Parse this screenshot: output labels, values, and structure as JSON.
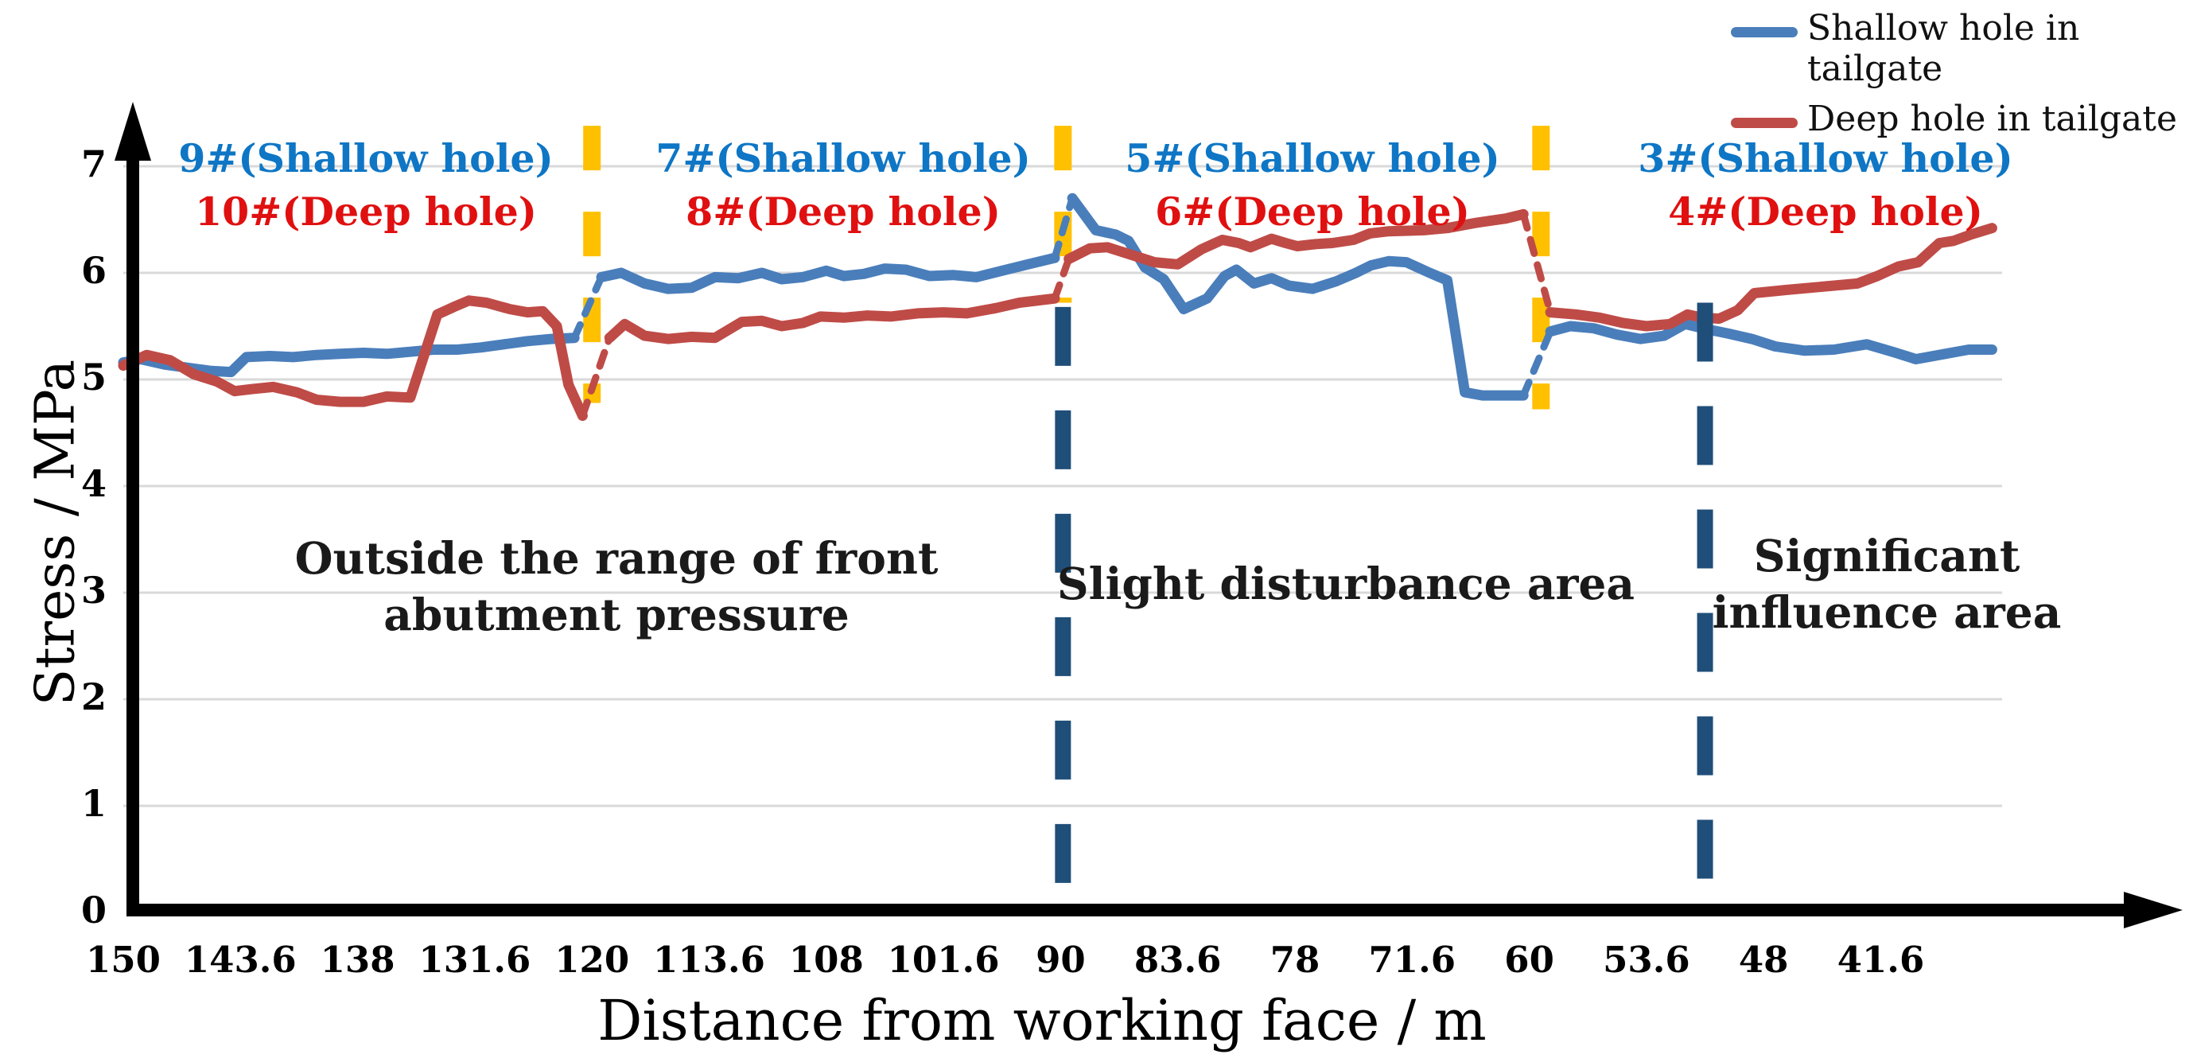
{
  "figure": {
    "background": "#ffffff",
    "description": "Borehole stress monitoring curves versus distance from working face"
  },
  "legend": {
    "items": [
      {
        "label": "Shallow hole in tailgate",
        "color": "#4a7ebb"
      },
      {
        "label": "Deep hole in tailgate",
        "color": "#bf4b47"
      }
    ]
  },
  "annotations": {
    "colors": {
      "shallow_text": "#0e76c5",
      "deep_text": "#e01010"
    },
    "hole_groups": [
      {
        "line1": "9#(Shallow hole)",
        "line2": "10#(Deep hole)"
      },
      {
        "line1": "7#(Shallow hole)",
        "line2": "8#(Deep hole)"
      },
      {
        "line1": "5#(Shallow hole)",
        "line2": "6#(Deep hole)"
      },
      {
        "line1": "3#(Shallow hole)",
        "line2": "4#(Deep hole)"
      }
    ],
    "regions": [
      {
        "line1": "Outside the range of front",
        "line2": "abutment pressure"
      },
      {
        "line1": "Slight disturbance area",
        "line2": ""
      },
      {
        "line1": "Significant",
        "line2": "influence area"
      }
    ]
  },
  "chart_data": {
    "type": "line",
    "title": "",
    "xlabel": "Distance from working face / m",
    "ylabel": "Stress / MPa",
    "x_tick_labels": [
      "150",
      "143.6",
      "138",
      "131.6",
      "120",
      "113.6",
      "108",
      "101.6",
      "90",
      "83.6",
      "78",
      "71.6",
      "60",
      "53.6",
      "48",
      "41.6"
    ],
    "x_direction": "decreasing distance left to right, ticks equally spaced",
    "y_ticks": [
      0,
      1,
      2,
      3,
      4,
      5,
      6,
      7
    ],
    "ylim": [
      0,
      7
    ],
    "grid": "horizontal gridlines at each integer, light gray",
    "legend_position": "top-right outside plot",
    "gridline_color": "#d9d9d9",
    "point_format": "[x_tick_index (0=150m ... 15=41.6m), stress_MPa]",
    "series": [
      {
        "name": "Shallow hole in tailgate",
        "color": "#4a7ebb",
        "segments": [
          {
            "style": "solid",
            "points": [
              [
                0,
                5.16
              ],
              [
                0.15,
                5.19
              ],
              [
                0.35,
                5.14
              ],
              [
                0.55,
                5.11
              ],
              [
                0.75,
                5.08
              ],
              [
                0.92,
                5.07
              ],
              [
                1.05,
                5.21
              ],
              [
                1.25,
                5.22
              ],
              [
                1.45,
                5.21
              ],
              [
                1.65,
                5.23
              ],
              [
                1.85,
                5.24
              ],
              [
                2.05,
                5.25
              ],
              [
                2.25,
                5.24
              ],
              [
                2.45,
                5.26
              ],
              [
                2.65,
                5.28
              ],
              [
                2.85,
                5.28
              ],
              [
                3.05,
                5.3
              ],
              [
                3.25,
                5.33
              ],
              [
                3.45,
                5.36
              ],
              [
                3.65,
                5.38
              ],
              [
                3.85,
                5.39
              ]
            ]
          },
          {
            "style": "dashed",
            "points": [
              [
                3.85,
                5.39
              ],
              [
                4.08,
                5.96
              ]
            ]
          },
          {
            "style": "solid",
            "points": [
              [
                4.08,
                5.96
              ],
              [
                4.25,
                6.0
              ],
              [
                4.45,
                5.9
              ],
              [
                4.65,
                5.85
              ],
              [
                4.85,
                5.86
              ],
              [
                5.05,
                5.96
              ],
              [
                5.25,
                5.95
              ],
              [
                5.45,
                6.0
              ],
              [
                5.62,
                5.94
              ],
              [
                5.8,
                5.96
              ],
              [
                6.0,
                6.02
              ],
              [
                6.15,
                5.97
              ],
              [
                6.32,
                5.99
              ],
              [
                6.5,
                6.04
              ],
              [
                6.68,
                6.03
              ],
              [
                6.88,
                5.97
              ],
              [
                7.08,
                5.98
              ],
              [
                7.28,
                5.96
              ],
              [
                7.5,
                6.02
              ],
              [
                7.72,
                6.08
              ],
              [
                7.95,
                6.14
              ]
            ]
          },
          {
            "style": "dashed",
            "points": [
              [
                7.95,
                6.14
              ],
              [
                8.1,
                6.7
              ]
            ]
          },
          {
            "style": "solid",
            "points": [
              [
                8.1,
                6.7
              ],
              [
                8.3,
                6.4
              ],
              [
                8.47,
                6.36
              ],
              [
                8.58,
                6.3
              ],
              [
                8.72,
                6.05
              ],
              [
                8.88,
                5.94
              ],
              [
                9.05,
                5.66
              ],
              [
                9.25,
                5.76
              ],
              [
                9.4,
                5.97
              ],
              [
                9.5,
                6.03
              ],
              [
                9.65,
                5.9
              ],
              [
                9.8,
                5.95
              ],
              [
                9.95,
                5.88
              ],
              [
                10.15,
                5.85
              ],
              [
                10.35,
                5.92
              ],
              [
                10.52,
                6.0
              ],
              [
                10.65,
                6.07
              ],
              [
                10.8,
                6.11
              ],
              [
                10.95,
                6.1
              ],
              [
                11.15,
                6.0
              ],
              [
                11.3,
                5.93
              ],
              [
                11.45,
                4.88
              ],
              [
                11.6,
                4.85
              ],
              [
                11.95,
                4.85
              ]
            ]
          },
          {
            "style": "dashed",
            "points": [
              [
                11.95,
                4.85
              ],
              [
                12.18,
                5.45
              ]
            ]
          },
          {
            "style": "solid",
            "points": [
              [
                12.18,
                5.45
              ],
              [
                12.35,
                5.5
              ],
              [
                12.55,
                5.48
              ],
              [
                12.75,
                5.42
              ],
              [
                12.95,
                5.38
              ],
              [
                13.15,
                5.41
              ],
              [
                13.33,
                5.52
              ],
              [
                13.52,
                5.47
              ],
              [
                13.7,
                5.43
              ],
              [
                13.9,
                5.38
              ],
              [
                14.1,
                5.31
              ],
              [
                14.35,
                5.27
              ],
              [
                14.6,
                5.28
              ],
              [
                14.88,
                5.33
              ],
              [
                15.1,
                5.26
              ],
              [
                15.3,
                5.19
              ],
              [
                15.55,
                5.24
              ],
              [
                15.75,
                5.28
              ],
              [
                15.95,
                5.28
              ]
            ]
          }
        ]
      },
      {
        "name": "Deep hole in tailgate",
        "color": "#bf4b47",
        "segments": [
          {
            "style": "solid",
            "points": [
              [
                0,
                5.13
              ],
              [
                0.2,
                5.23
              ],
              [
                0.4,
                5.18
              ],
              [
                0.6,
                5.05
              ],
              [
                0.8,
                4.98
              ],
              [
                0.95,
                4.89
              ],
              [
                1.1,
                4.91
              ],
              [
                1.28,
                4.93
              ],
              [
                1.48,
                4.88
              ],
              [
                1.65,
                4.81
              ],
              [
                1.85,
                4.79
              ],
              [
                2.05,
                4.79
              ],
              [
                2.25,
                4.84
              ],
              [
                2.45,
                4.83
              ],
              [
                2.68,
                5.61
              ],
              [
                2.82,
                5.68
              ],
              [
                2.95,
                5.74
              ],
              [
                3.1,
                5.72
              ],
              [
                3.3,
                5.66
              ],
              [
                3.45,
                5.63
              ],
              [
                3.58,
                5.64
              ],
              [
                3.7,
                5.5
              ],
              [
                3.8,
                4.95
              ],
              [
                3.92,
                4.66
              ]
            ]
          },
          {
            "style": "dashed",
            "points": [
              [
                3.92,
                4.66
              ],
              [
                4.15,
                5.39
              ]
            ]
          },
          {
            "style": "solid",
            "points": [
              [
                4.15,
                5.39
              ],
              [
                4.28,
                5.52
              ],
              [
                4.45,
                5.41
              ],
              [
                4.65,
                5.38
              ],
              [
                4.85,
                5.4
              ],
              [
                5.05,
                5.39
              ],
              [
                5.28,
                5.54
              ],
              [
                5.45,
                5.55
              ],
              [
                5.62,
                5.5
              ],
              [
                5.8,
                5.53
              ],
              [
                5.95,
                5.59
              ],
              [
                6.15,
                5.58
              ],
              [
                6.35,
                5.6
              ],
              [
                6.55,
                5.59
              ],
              [
                6.78,
                5.62
              ],
              [
                7.0,
                5.63
              ],
              [
                7.2,
                5.62
              ],
              [
                7.45,
                5.67
              ],
              [
                7.65,
                5.72
              ],
              [
                7.95,
                5.76
              ]
            ]
          },
          {
            "style": "dashed",
            "points": [
              [
                7.95,
                5.76
              ],
              [
                8.07,
                6.13
              ]
            ]
          },
          {
            "style": "solid",
            "points": [
              [
                8.07,
                6.13
              ],
              [
                8.25,
                6.23
              ],
              [
                8.4,
                6.24
              ],
              [
                8.6,
                6.17
              ],
              [
                8.8,
                6.1
              ],
              [
                9.0,
                6.08
              ],
              [
                9.2,
                6.22
              ],
              [
                9.38,
                6.31
              ],
              [
                9.52,
                6.28
              ],
              [
                9.62,
                6.24
              ],
              [
                9.8,
                6.32
              ],
              [
                9.92,
                6.28
              ],
              [
                10.02,
                6.25
              ],
              [
                10.18,
                6.27
              ],
              [
                10.32,
                6.28
              ],
              [
                10.5,
                6.31
              ],
              [
                10.64,
                6.37
              ],
              [
                10.8,
                6.39
              ],
              [
                11.1,
                6.4
              ],
              [
                11.3,
                6.42
              ],
              [
                11.55,
                6.47
              ],
              [
                11.8,
                6.51
              ],
              [
                11.95,
                6.55
              ]
            ]
          },
          {
            "style": "dashed",
            "points": [
              [
                11.95,
                6.55
              ],
              [
                12.18,
                5.63
              ]
            ]
          },
          {
            "style": "solid",
            "points": [
              [
                12.18,
                5.63
              ],
              [
                12.4,
                5.61
              ],
              [
                12.6,
                5.58
              ],
              [
                12.8,
                5.53
              ],
              [
                13.0,
                5.5
              ],
              [
                13.2,
                5.52
              ],
              [
                13.35,
                5.61
              ],
              [
                13.48,
                5.58
              ],
              [
                13.62,
                5.57
              ],
              [
                13.78,
                5.65
              ],
              [
                13.92,
                5.81
              ],
              [
                14.2,
                5.84
              ],
              [
                14.5,
                5.87
              ],
              [
                14.8,
                5.9
              ],
              [
                14.97,
                5.97
              ],
              [
                15.15,
                6.06
              ],
              [
                15.32,
                6.1
              ],
              [
                15.5,
                6.28
              ],
              [
                15.62,
                6.3
              ],
              [
                15.77,
                6.36
              ],
              [
                15.95,
                6.42
              ]
            ]
          }
        ]
      }
    ],
    "marker_lines": [
      {
        "color": "#ffc000",
        "style": "dashed",
        "x_index": 4.0,
        "v_top": 7.38,
        "v_bottom": 4.78
      },
      {
        "color": "#ffc000",
        "style": "dashed",
        "x_index": 8.02,
        "v_top": 7.38,
        "v_bottom": 5.72
      },
      {
        "color": "#ffc000",
        "style": "dashed",
        "x_index": 12.1,
        "v_top": 7.38,
        "v_bottom": 4.72
      },
      {
        "color": "#1f4e79",
        "style": "dashed",
        "x_index": 8.02,
        "v_top": 5.68,
        "v_bottom": -0.04
      },
      {
        "color": "#1f4e79",
        "style": "dashed",
        "x_index": 13.5,
        "v_top": 5.72,
        "v_bottom": -0.06
      }
    ]
  }
}
